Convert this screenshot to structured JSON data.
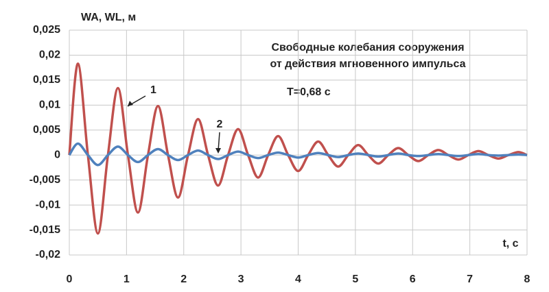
{
  "chart_data": {
    "type": "line",
    "title": "Свободные колебания сооружения",
    "subtitle": "от действия мгновенного импульса",
    "annotation": "T=0,68 с",
    "y_label": "WA, WL, м",
    "x_label": "t, с",
    "x": [
      0,
      0.15,
      0.325,
      0.5,
      0.675,
      0.85,
      1.025,
      1.2,
      1.375,
      1.55,
      1.725,
      1.9,
      2.075,
      2.25,
      2.425,
      2.6,
      2.775,
      2.95,
      3.125,
      3.3,
      3.475,
      3.65,
      3.825,
      4,
      4.175,
      4.35,
      4.525,
      4.7,
      4.875,
      5.05,
      5.225,
      5.4,
      5.575,
      5.75,
      5.925,
      6.1,
      6.275,
      6.45,
      6.625,
      6.8,
      6.975,
      7.15,
      7.325,
      7.5,
      7.675,
      7.85,
      8
    ],
    "series": [
      {
        "name": "1",
        "color": "#c0504d",
        "values": [
          0,
          0.0183,
          0,
          -0.0157,
          0,
          0.0134,
          0,
          -0.0115,
          0,
          0.0098,
          0,
          -0.0085,
          0,
          0.0072,
          0,
          -0.0061,
          0,
          0.0052,
          0,
          -0.0045,
          0,
          0.0038,
          0,
          -0.0032,
          0,
          0.0027,
          0,
          -0.0023,
          0,
          0.002,
          0,
          -0.0017,
          0,
          0.0014,
          0,
          -0.0012,
          0,
          0.001,
          0,
          -0.0009,
          0,
          0.0008,
          0,
          -0.0007,
          0,
          0.0006,
          0
        ]
      },
      {
        "name": "2",
        "color": "#4f81bd",
        "values": [
          0,
          0.0023,
          0,
          -0.002,
          0,
          0.0017,
          0,
          -0.0014,
          0,
          0.0012,
          0,
          -0.001,
          0,
          0.0009,
          0,
          -0.0008,
          0,
          0.0007,
          0,
          -0.0006,
          0,
          0.0005,
          0,
          -0.0005,
          0,
          0.0004,
          0,
          -0.0004,
          0,
          0.0003,
          0,
          -0.0003,
          0,
          0.0003,
          0,
          -0.0002,
          0,
          0.0002,
          0,
          -0.0002,
          0,
          0.0002,
          0,
          -0.0001,
          0,
          0.0001,
          0
        ]
      }
    ],
    "xlim": [
      0,
      8
    ],
    "xticks": [
      0,
      1,
      2,
      3,
      4,
      5,
      6,
      7,
      8
    ],
    "ylim": [
      -0.02,
      0.025
    ],
    "yticks": [
      {
        "value": -0.02,
        "label": "-0,02"
      },
      {
        "value": -0.015,
        "label": "-0,015"
      },
      {
        "value": -0.01,
        "label": "-0,01"
      },
      {
        "value": -0.005,
        "label": "-0,005"
      },
      0,
      {
        "value": 0.005,
        "label": "0,005"
      },
      {
        "value": 0.01,
        "label": "0,01"
      },
      {
        "value": 0.015,
        "label": "0,015"
      },
      {
        "value": 0.02,
        "label": "0,02"
      },
      {
        "value": 0.025,
        "label": "0,025"
      }
    ],
    "grid": true
  }
}
